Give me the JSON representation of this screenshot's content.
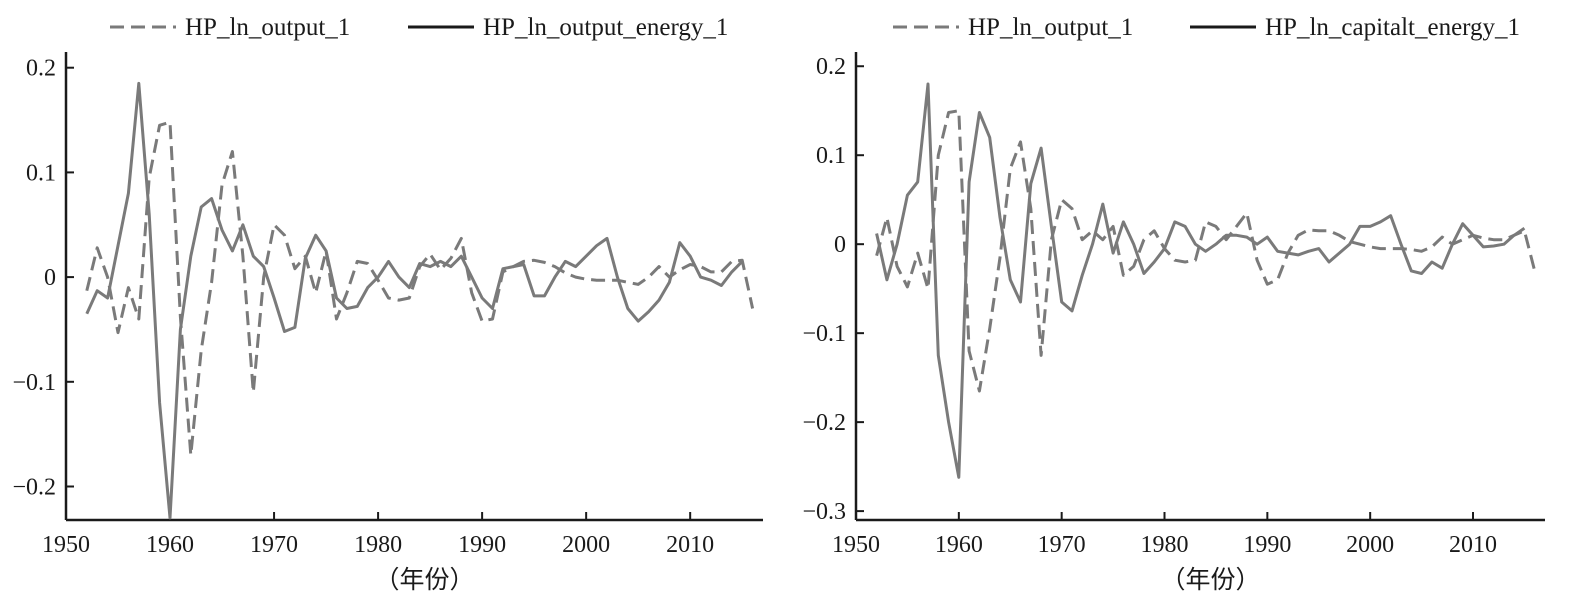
{
  "colors": {
    "line": "#7a7a7a",
    "axis": "#1a1a1a",
    "legend_line": "#1a1a1a",
    "legend_dash": "#7a7a7a"
  },
  "chart_data": [
    {
      "type": "line",
      "title": "",
      "xlabel": "（年份）",
      "ylabel": "",
      "xlim": [
        1950,
        2017
      ],
      "ylim": [
        -0.232,
        0.215
      ],
      "xticks": [
        1950,
        1960,
        1970,
        1980,
        1990,
        2000,
        2010
      ],
      "xtick_labels": [
        "1950",
        "1960",
        "1970",
        "1980",
        "1990",
        "2000",
        "2010"
      ],
      "yticks": [
        -0.2,
        -0.1,
        0,
        0.1,
        0.2
      ],
      "ytick_labels": [
        "−0.2",
        "−0.1",
        "0",
        "0.1",
        "0.2"
      ],
      "legend_position": "top",
      "series": [
        {
          "name": "HP_ln_output_1",
          "style": "dashed",
          "x": [
            1952,
            1953,
            1954,
            1955,
            1956,
            1957,
            1958,
            1959,
            1960,
            1961,
            1962,
            1963,
            1964,
            1965,
            1966,
            1967,
            1968,
            1969,
            1970,
            1971,
            1972,
            1973,
            1974,
            1975,
            1976,
            1977,
            1978,
            1979,
            1980,
            1981,
            1982,
            1983,
            1984,
            1985,
            1986,
            1987,
            1988,
            1989,
            1990,
            1991,
            1992,
            1993,
            1994,
            1995,
            1996,
            1997,
            1998,
            1999,
            2000,
            2001,
            2002,
            2003,
            2004,
            2005,
            2006,
            2007,
            2008,
            2009,
            2010,
            2011,
            2012,
            2013,
            2014,
            2015,
            2016
          ],
          "values": [
            -0.013,
            0.028,
            0.0,
            -0.053,
            -0.01,
            -0.04,
            0.095,
            0.145,
            0.148,
            -0.038,
            -0.17,
            -0.07,
            -0.005,
            0.088,
            0.12,
            0.02,
            -0.11,
            0.0,
            0.05,
            0.04,
            0.008,
            0.02,
            -0.015,
            0.025,
            -0.04,
            -0.015,
            0.015,
            0.013,
            -0.003,
            -0.02,
            -0.022,
            -0.02,
            0.01,
            0.022,
            0.007,
            0.018,
            0.037,
            -0.015,
            -0.042,
            -0.04,
            0.005,
            0.01,
            0.015,
            0.016,
            0.014,
            0.01,
            0.004,
            0.0,
            -0.002,
            -0.003,
            -0.003,
            -0.003,
            -0.005,
            -0.007,
            0.0,
            0.01,
            0.0,
            0.007,
            0.012,
            0.01,
            0.005,
            0.005,
            0.015,
            0.016,
            -0.03
          ]
        },
        {
          "name": "HP_ln_output_energy_1",
          "style": "solid",
          "x": [
            1952,
            1953,
            1954,
            1955,
            1956,
            1957,
            1958,
            1959,
            1960,
            1961,
            1962,
            1963,
            1964,
            1965,
            1966,
            1967,
            1968,
            1969,
            1970,
            1971,
            1972,
            1973,
            1974,
            1975,
            1976,
            1977,
            1978,
            1979,
            1980,
            1981,
            1982,
            1983,
            1984,
            1985,
            1986,
            1987,
            1988,
            1989,
            1990,
            1991,
            1992,
            1993,
            1994,
            1995,
            1996,
            1997,
            1998,
            1999,
            2000,
            2001,
            2002,
            2003,
            2004,
            2005,
            2006,
            2007,
            2008,
            2009,
            2010,
            2011,
            2012,
            2013,
            2014,
            2015
          ],
          "values": [
            -0.035,
            -0.013,
            -0.02,
            0.03,
            0.08,
            0.185,
            0.06,
            -0.12,
            -0.23,
            -0.05,
            0.02,
            0.067,
            0.075,
            0.045,
            0.025,
            0.05,
            0.02,
            0.01,
            -0.02,
            -0.052,
            -0.048,
            0.018,
            0.04,
            0.025,
            -0.02,
            -0.03,
            -0.028,
            -0.01,
            0.0,
            0.015,
            0.0,
            -0.01,
            0.013,
            0.01,
            0.015,
            0.01,
            0.02,
            0.0,
            -0.02,
            -0.03,
            0.008,
            0.01,
            0.012,
            -0.018,
            -0.018,
            0.0,
            0.015,
            0.01,
            0.02,
            0.03,
            0.037,
            0.0,
            -0.03,
            -0.042,
            -0.033,
            -0.022,
            -0.005,
            0.033,
            0.02,
            0.0,
            -0.003,
            -0.008,
            0.005,
            0.015
          ]
        }
      ]
    },
    {
      "type": "line",
      "title": "",
      "xlabel": "（年份）",
      "ylabel": "",
      "xlim": [
        1950,
        2017
      ],
      "ylim": [
        -0.31,
        0.216
      ],
      "xticks": [
        1950,
        1960,
        1970,
        1980,
        1990,
        2000,
        2010
      ],
      "xtick_labels": [
        "1950",
        "1960",
        "1970",
        "1980",
        "1990",
        "2000",
        "2010"
      ],
      "yticks": [
        -0.3,
        -0.2,
        -0.1,
        0,
        0.1,
        0.2
      ],
      "ytick_labels": [
        "−0.3",
        "−0.2",
        "−0.1",
        "0",
        "0.1",
        "0.2"
      ],
      "legend_position": "top",
      "series": [
        {
          "name": "HP_ln_output_1",
          "style": "dashed",
          "x": [
            1952,
            1953,
            1954,
            1955,
            1956,
            1957,
            1958,
            1959,
            1960,
            1961,
            1962,
            1963,
            1964,
            1965,
            1966,
            1967,
            1968,
            1969,
            1970,
            1971,
            1972,
            1973,
            1974,
            1975,
            1976,
            1977,
            1978,
            1979,
            1980,
            1981,
            1982,
            1983,
            1984,
            1985,
            1986,
            1987,
            1988,
            1989,
            1990,
            1991,
            1992,
            1993,
            1994,
            1995,
            1996,
            1997,
            1998,
            1999,
            2000,
            2001,
            2002,
            2003,
            2004,
            2005,
            2006,
            2007,
            2008,
            2009,
            2010,
            2011,
            2012,
            2013,
            2014,
            2015,
            2016
          ],
          "values": [
            -0.013,
            0.03,
            -0.025,
            -0.048,
            -0.01,
            -0.05,
            0.1,
            0.148,
            0.15,
            -0.12,
            -0.165,
            -0.095,
            -0.015,
            0.085,
            0.115,
            0.04,
            -0.125,
            0.005,
            0.05,
            0.04,
            0.005,
            0.015,
            0.005,
            0.02,
            -0.035,
            -0.025,
            0.005,
            0.015,
            -0.005,
            -0.018,
            -0.02,
            -0.018,
            0.025,
            0.02,
            0.005,
            0.02,
            0.035,
            -0.018,
            -0.045,
            -0.04,
            -0.01,
            0.01,
            0.016,
            0.015,
            0.015,
            0.01,
            0.003,
            0.0,
            -0.003,
            -0.005,
            -0.005,
            -0.005,
            -0.006,
            -0.008,
            -0.003,
            0.008,
            0.0,
            0.005,
            0.01,
            0.007,
            0.005,
            0.005,
            0.01,
            0.015,
            -0.03
          ]
        },
        {
          "name": "HP_ln_capitalt_energy_1",
          "style": "solid",
          "x": [
            1952,
            1953,
            1954,
            1955,
            1956,
            1957,
            1958,
            1959,
            1960,
            1961,
            1962,
            1963,
            1964,
            1965,
            1966,
            1967,
            1968,
            1969,
            1970,
            1971,
            1972,
            1973,
            1974,
            1975,
            1976,
            1977,
            1978,
            1979,
            1980,
            1981,
            1982,
            1983,
            1984,
            1985,
            1986,
            1987,
            1988,
            1989,
            1990,
            1991,
            1992,
            1993,
            1994,
            1995,
            1996,
            1997,
            1998,
            1999,
            2000,
            2001,
            2002,
            2003,
            2004,
            2005,
            2006,
            2007,
            2008,
            2009,
            2010,
            2011,
            2012,
            2013,
            2014,
            2015
          ],
          "values": [
            0.012,
            -0.04,
            0.0,
            0.055,
            0.07,
            0.18,
            -0.125,
            -0.2,
            -0.262,
            0.07,
            0.148,
            0.12,
            0.03,
            -0.04,
            -0.065,
            0.068,
            0.108,
            0.02,
            -0.065,
            -0.075,
            -0.035,
            0.0,
            0.045,
            -0.01,
            0.025,
            0.0,
            -0.033,
            -0.02,
            -0.005,
            0.025,
            0.02,
            0.0,
            -0.008,
            0.0,
            0.01,
            0.01,
            0.008,
            0.0,
            0.008,
            -0.008,
            -0.01,
            -0.012,
            -0.008,
            -0.005,
            -0.02,
            -0.01,
            0.0,
            0.02,
            0.02,
            0.025,
            0.032,
            0.0,
            -0.03,
            -0.033,
            -0.02,
            -0.027,
            0.0,
            0.023,
            0.01,
            -0.003,
            -0.002,
            0.0,
            0.01,
            0.018
          ]
        }
      ]
    }
  ]
}
